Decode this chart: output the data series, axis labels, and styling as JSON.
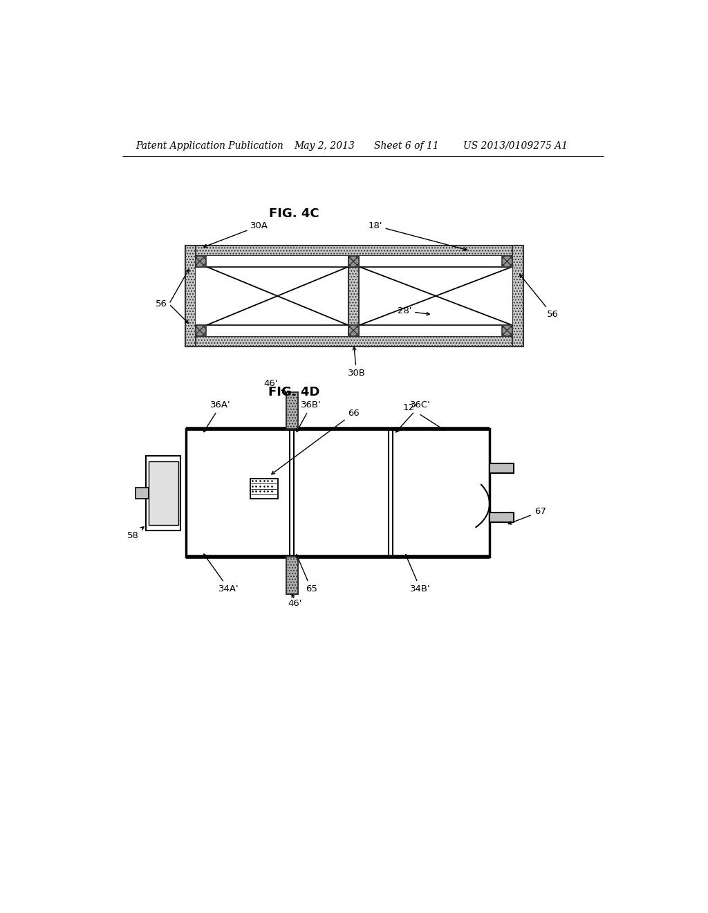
{
  "bg_color": "#ffffff",
  "header_text": "Patent Application Publication",
  "header_date": "May 2, 2013",
  "header_sheet": "Sheet 6 of 11",
  "header_patent": "US 2013/0109275 A1",
  "fig4c_title": "FIG. 4C",
  "fig4d_title": "FIG. 4D"
}
